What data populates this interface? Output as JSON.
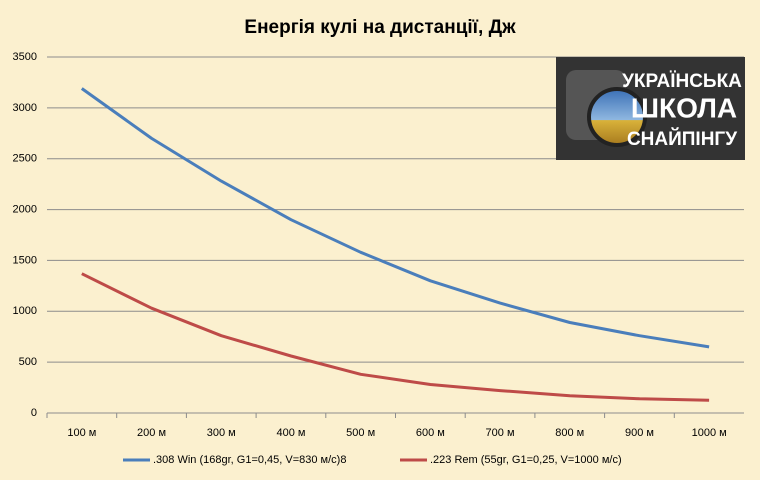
{
  "chart_data": {
    "type": "line",
    "title": "Енергія кулі на дистанції, Дж",
    "categories": [
      "100 м",
      "200 м",
      "300 м",
      "400 м",
      "500 м",
      "600 м",
      "700 м",
      "800 м",
      "900 м",
      "1000 м"
    ],
    "series": [
      {
        "name": ".308 Win (168gr, G1=0,45, V=830 м/с)8",
        "color": "#4a7ebb",
        "values": [
          3190,
          2700,
          2280,
          1900,
          1580,
          1300,
          1080,
          890,
          760,
          650
        ]
      },
      {
        "name": ".223 Rem (55gr, G1=0,25, V=1000 м/с)",
        "color": "#be4b48",
        "values": [
          1370,
          1030,
          760,
          560,
          380,
          280,
          220,
          170,
          140,
          125
        ]
      }
    ],
    "ylim": [
      0,
      3500
    ],
    "yticks": [
      0,
      500,
      1000,
      1500,
      2000,
      2500,
      3000,
      3500
    ],
    "grid": true,
    "legend": "bottom",
    "logo_lines": [
      "УКРАЇНСЬКА",
      "ШКОЛА",
      "СНАЙПІНГУ"
    ]
  }
}
